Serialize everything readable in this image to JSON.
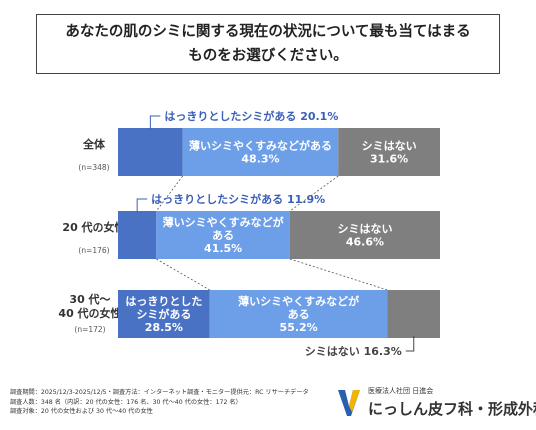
{
  "title": "あなたの肌のシミに関する現在の状況について最も当てはまる\nものをお選びください。",
  "colors": {
    "clear": "#4a72c4",
    "faint": "#6d9ee8",
    "none": "#7f7f7f"
  },
  "chart_data": {
    "type": "bar",
    "stacked": true,
    "orientation": "horizontal",
    "categories": [
      "全体",
      "20 代の女性",
      "30 代～\n40 代の女性"
    ],
    "category_n": [
      "(n=348)",
      "(n=176)",
      "(n=172)"
    ],
    "series": [
      {
        "name": "はっきりとしたシミがある",
        "values": [
          20.1,
          11.9,
          28.5
        ]
      },
      {
        "name": "薄いシミやくすみなどがある",
        "values": [
          48.3,
          41.5,
          55.2
        ]
      },
      {
        "name": "シミはない",
        "values": [
          31.6,
          46.6,
          16.3
        ]
      }
    ],
    "segment_labels": [
      [
        {
          "text": "はっきりとしたシミがある 20.1%",
          "style": "callout-above"
        },
        {
          "text": "薄いシミやくすみなどがある\n48.3%",
          "style": "inside"
        },
        {
          "text": "シミはない\n31.6%",
          "style": "inside"
        }
      ],
      [
        {
          "text": "はっきりとしたシミがある 11.9%",
          "style": "callout-above"
        },
        {
          "text": "薄いシミやくすみなどが\nある\n41.5%",
          "style": "inside"
        },
        {
          "text": "シミはない\n46.6%",
          "style": "inside"
        }
      ],
      [
        {
          "text": "はっきりとした\nシミがある\n28.5%",
          "style": "inside"
        },
        {
          "text": "薄いシミやくすみなどが\nある\n55.2%",
          "style": "inside"
        },
        {
          "text": "シミはない  16.3%",
          "style": "callout-below"
        }
      ]
    ],
    "xlim": [
      0,
      100
    ]
  },
  "footer": {
    "lines": [
      "調査期間：2025/12/3-2025/12/5・調査方法：インターネット調査・モニター提供元：RC リサーチデータ",
      "調査人数：348 名（内訳：20 代の女性：176 名、30 代～40 代の女性：172 名）",
      "調査対象：20 代の女性および 30 代～40 代の女性"
    ]
  },
  "clinic": {
    "corp": "医療法人社団 日進会",
    "name": "にっしん皮フ科・形成外科"
  }
}
